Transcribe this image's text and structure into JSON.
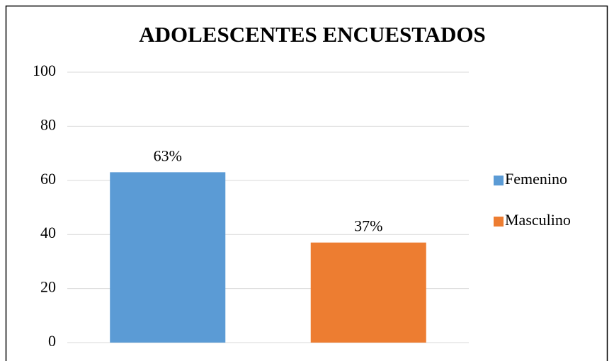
{
  "chart_data": {
    "type": "bar",
    "title": "ADOLESCENTES ENCUESTADOS",
    "categories": [
      null
    ],
    "series": [
      {
        "name": "Femenino",
        "color": "#5b9bd5",
        "values": [
          63
        ],
        "value_labels": [
          "63%"
        ]
      },
      {
        "name": "Masculino",
        "color": "#ed7d31",
        "values": [
          37
        ],
        "value_labels": [
          "37%"
        ]
      }
    ],
    "ylim": [
      0,
      100
    ],
    "yticks": [
      0,
      20,
      40,
      60,
      80,
      100
    ],
    "grid": true,
    "legend": "right"
  }
}
